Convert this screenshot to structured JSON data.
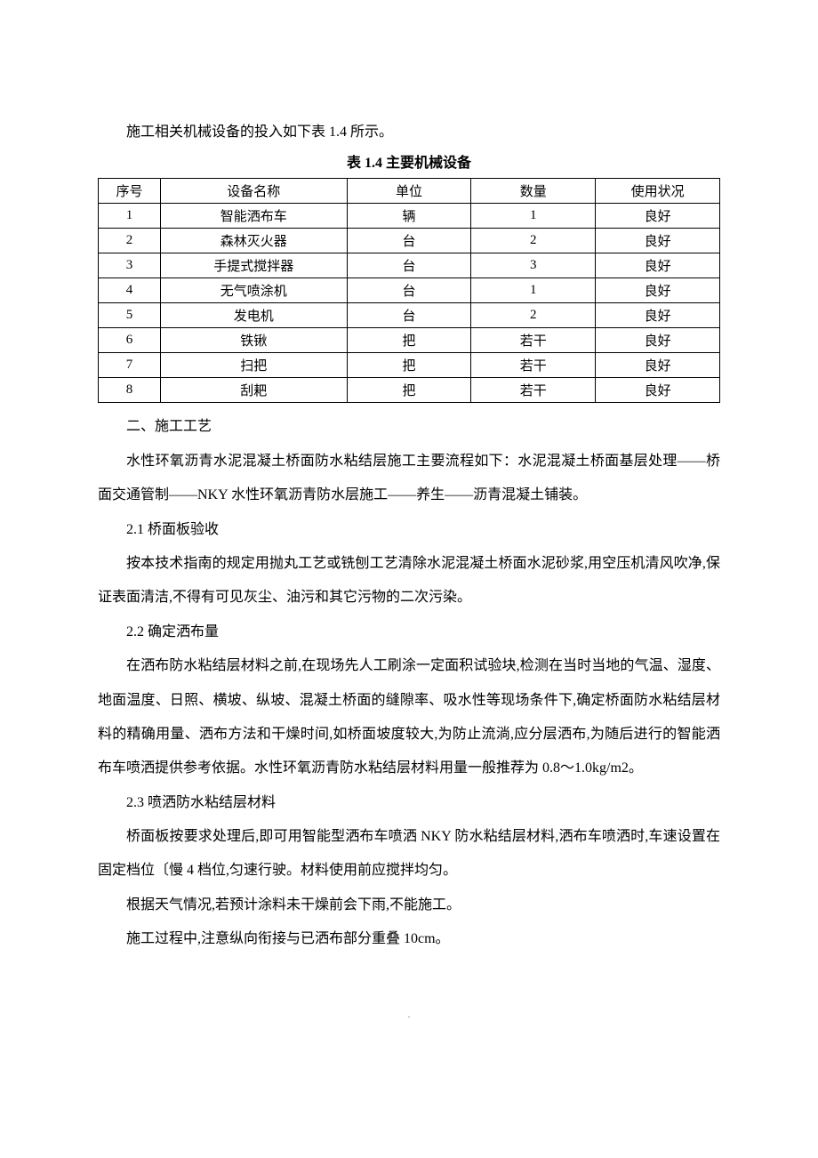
{
  "intro": "施工相关机械设备的投入如下表 1.4 所示。",
  "table": {
    "title": "表 1.4  主要机械设备",
    "columns": [
      "序号",
      "设备名称",
      "单位",
      "数量",
      "使用状况"
    ],
    "rows": [
      [
        "1",
        "智能洒布车",
        "辆",
        "1",
        "良好"
      ],
      [
        "2",
        "森林灭火器",
        "台",
        "2",
        "良好"
      ],
      [
        "3",
        "手提式搅拌器",
        "台",
        "3",
        "良好"
      ],
      [
        "4",
        "无气喷涂机",
        "台",
        "1",
        "良好"
      ],
      [
        "5",
        "发电机",
        "台",
        "2",
        "良好"
      ],
      [
        "6",
        "铁锹",
        "把",
        "若干",
        "良好"
      ],
      [
        "7",
        "扫把",
        "把",
        "若干",
        "良好"
      ],
      [
        "8",
        "刮耙",
        "把",
        "若干",
        "良好"
      ]
    ]
  },
  "section2": {
    "heading": "二、施工工艺",
    "intro": "水性环氧沥青水泥混凝土桥面防水粘结层施工主要流程如下：水泥混凝土桥面基层处理——桥面交通管制——NKY 水性环氧沥青防水层施工——养生——沥青混凝土铺装。",
    "sub1": {
      "heading": "2.1 桥面板验收",
      "body": "按本技术指南的规定用抛丸工艺或铣刨工艺清除水泥混凝土桥面水泥砂浆,用空压机清风吹净,保证表面清洁,不得有可见灰尘、油污和其它污物的二次污染。"
    },
    "sub2": {
      "heading": "2.2  确定洒布量",
      "body": "在洒布防水粘结层材料之前,在现场先人工刷涂一定面积试验块,检测在当时当地的气温、湿度、地面温度、日照、横坡、纵坡、混凝土桥面的缝隙率、吸水性等现场条件下,确定桥面防水粘结层材料的精确用量、洒布方法和干燥时间,如桥面坡度较大,为防止流淌,应分层洒布,为随后进行的智能洒布车喷洒提供参考依据。水性环氧沥青防水粘结层材料用量一般推荐为 0.8～1.0kg/m2。"
    },
    "sub3": {
      "heading": "2.3 喷洒防水粘结层材料",
      "body1": "桥面板按要求处理后,即可用智能型洒布车喷洒 NKY 防水粘结层材料,洒布车喷洒时,车速设置在固定档位〔慢 4 档位,匀速行驶。材料使用前应搅拌均匀。",
      "body2": "根据天气情况,若预计涂料未干燥前会下雨,不能施工。",
      "body3": "施工过程中,注意纵向衔接与已洒布部分重叠 10cm。"
    }
  },
  "footer": "."
}
